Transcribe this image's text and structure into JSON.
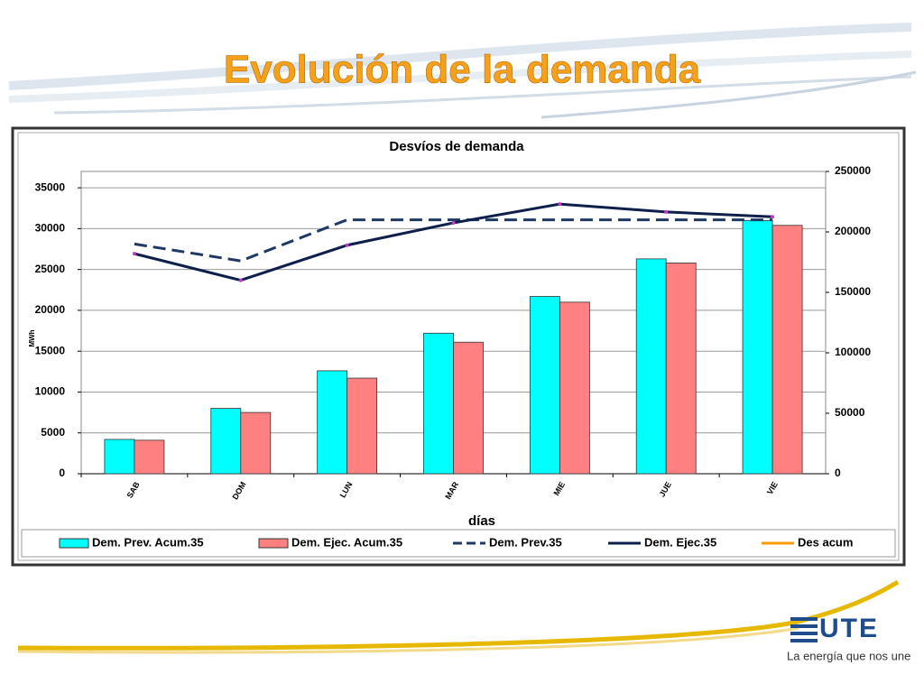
{
  "slide_title": "Evolución de la demanda",
  "logo": {
    "text": "UTE",
    "tagline": "La energía que nos une"
  },
  "chart_data": {
    "type": "bar-line",
    "title": "Desvíos de demanda",
    "x_label": "días",
    "y_label": "MWh",
    "categories": [
      "SAB",
      "DOM",
      "LUN",
      "MAR",
      "MIE",
      "JUE",
      "VIE"
    ],
    "series": [
      {
        "name": "Dem. Prev. Acum.35",
        "type": "bar",
        "color": "#00ffff",
        "values": [
          4200,
          8000,
          12600,
          17200,
          21700,
          26300,
          31000
        ]
      },
      {
        "name": "Dem. Ejec. Acum.35",
        "type": "bar",
        "color": "#ff8080",
        "values": [
          4100,
          7500,
          11700,
          16100,
          21000,
          25800,
          30400
        ]
      },
      {
        "name": "Dem. Prev.35",
        "type": "line",
        "axis": "y2",
        "color": "#1f3864",
        "line_style": "dashed",
        "values": [
          190000,
          176000,
          210000,
          210000,
          210000,
          210000,
          210000
        ]
      },
      {
        "name": "Dem. Ejec.35",
        "type": "line",
        "axis": "y2",
        "color": "#0d1f4a",
        "line_style": "solid",
        "marker_color": "#cc33cc",
        "values": [
          182000,
          160000,
          189000,
          207500,
          223000,
          216500,
          212500
        ]
      },
      {
        "name": "Des acum",
        "type": "line",
        "axis": "y2",
        "color": "#ff9900",
        "line_style": "solid",
        "values": [
          null,
          null,
          null,
          null,
          null,
          null,
          null
        ]
      }
    ],
    "ylim": [
      0,
      37000
    ],
    "yticks": [
      0,
      5000,
      10000,
      15000,
      20000,
      25000,
      30000,
      35000
    ],
    "y2lim": [
      0,
      250000
    ],
    "y2ticks": [
      0,
      50000,
      100000,
      150000,
      200000,
      250000
    ],
    "grid": true,
    "legend": "bottom"
  }
}
